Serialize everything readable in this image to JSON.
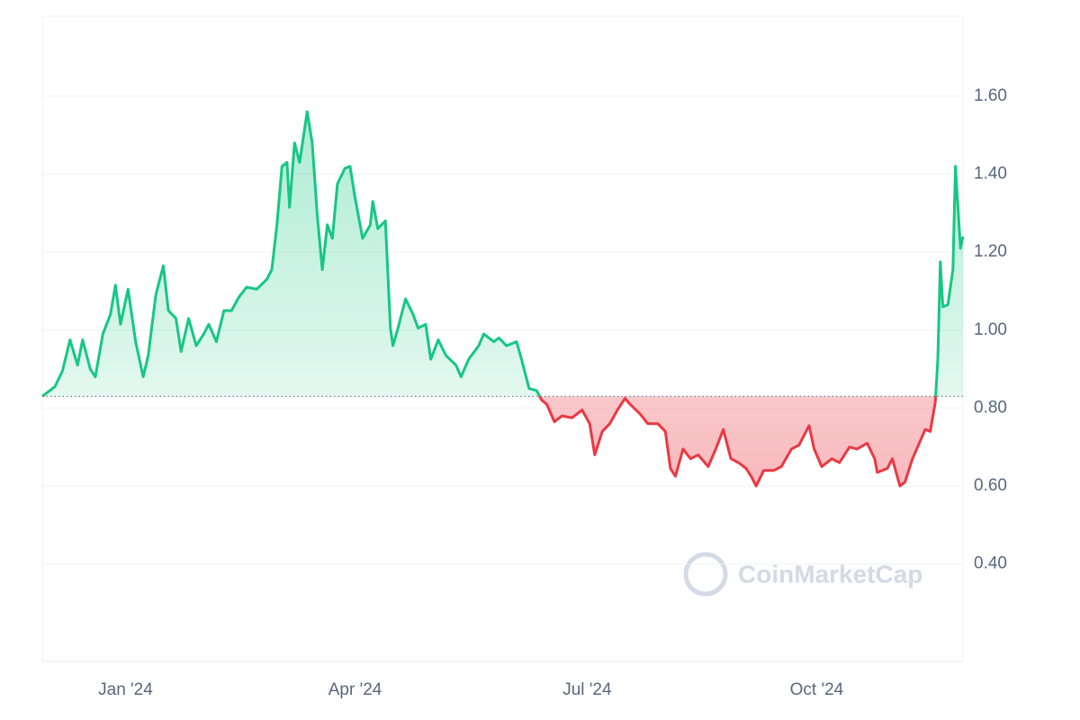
{
  "chart_data": {
    "type": "baseline-line",
    "watermark": "CoinMarketCap",
    "x": [
      0,
      5,
      8,
      11,
      14,
      16,
      19,
      21,
      24,
      27,
      29,
      31,
      34,
      37,
      40,
      42,
      45,
      48,
      50,
      53,
      55,
      58,
      61,
      64,
      66,
      69,
      72,
      75,
      78,
      81,
      85,
      89,
      91,
      93,
      95,
      97,
      98,
      100,
      102,
      105,
      107,
      109,
      111,
      113,
      115,
      117,
      120,
      122,
      124,
      127,
      130,
      131,
      133,
      136,
      138,
      139,
      141,
      144,
      147,
      149,
      152,
      154,
      157,
      160,
      164,
      166,
      169,
      173,
      175,
      179,
      181,
      184,
      188,
      190,
      193,
      196,
      198,
      200,
      203,
      206,
      210,
      214,
      217,
      219,
      222,
      225,
      228,
      231,
      233,
      237,
      240,
      244,
      247,
      249,
      251,
      254,
      257,
      260,
      264,
      267,
      270,
      273,
      276,
      279,
      281,
      283,
      286,
      290,
      293,
      297,
      300,
      304,
      306,
      309,
      313,
      316,
      320,
      323,
      327,
      330,
      331,
      335,
      337,
      340,
      342,
      345,
      348,
      350,
      352,
      354,
      355,
      356,
      357,
      359,
      361,
      362,
      364,
      365
    ],
    "values": [
      0.83,
      0.855,
      0.895,
      0.975,
      0.91,
      0.975,
      0.9,
      0.88,
      0.99,
      1.04,
      1.115,
      1.015,
      1.105,
      0.97,
      0.88,
      0.935,
      1.09,
      1.165,
      1.05,
      1.03,
      0.945,
      1.03,
      0.96,
      0.99,
      1.015,
      0.97,
      1.05,
      1.05,
      1.085,
      1.11,
      1.105,
      1.13,
      1.155,
      1.27,
      1.42,
      1.43,
      1.315,
      1.48,
      1.43,
      1.56,
      1.48,
      1.295,
      1.155,
      1.27,
      1.235,
      1.375,
      1.415,
      1.42,
      1.34,
      1.235,
      1.27,
      1.33,
      1.26,
      1.28,
      1.005,
      0.96,
      1.005,
      1.08,
      1.04,
      1.005,
      1.015,
      0.925,
      0.975,
      0.935,
      0.91,
      0.88,
      0.925,
      0.96,
      0.99,
      0.97,
      0.98,
      0.96,
      0.97,
      0.925,
      0.85,
      0.845,
      0.82,
      0.81,
      0.765,
      0.78,
      0.775,
      0.795,
      0.76,
      0.68,
      0.74,
      0.76,
      0.795,
      0.825,
      0.81,
      0.785,
      0.76,
      0.76,
      0.74,
      0.645,
      0.625,
      0.695,
      0.67,
      0.68,
      0.65,
      0.695,
      0.745,
      0.67,
      0.66,
      0.645,
      0.625,
      0.6,
      0.64,
      0.64,
      0.65,
      0.695,
      0.705,
      0.755,
      0.695,
      0.65,
      0.67,
      0.66,
      0.7,
      0.695,
      0.71,
      0.67,
      0.635,
      0.645,
      0.67,
      0.6,
      0.61,
      0.67,
      0.715,
      0.745,
      0.74,
      0.815,
      0.925,
      1.175,
      1.06,
      1.065,
      1.155,
      1.42,
      1.21,
      1.24
    ],
    "baseline": 0.83,
    "up_color": "#16c784",
    "down_color": "#ea3943",
    "xlim": [
      0,
      365
    ],
    "xticks": [
      {
        "value": 33,
        "label": "Jan '24"
      },
      {
        "value": 124,
        "label": "Apr '24"
      },
      {
        "value": 216,
        "label": "Jul '24"
      },
      {
        "value": 307,
        "label": "Oct '24"
      }
    ],
    "ylim": [
      0.15,
      1.805
    ],
    "yticks": [
      {
        "value": 0.4,
        "label": "0.40"
      },
      {
        "value": 0.6,
        "label": "0.60"
      },
      {
        "value": 0.8,
        "label": "0.80"
      },
      {
        "value": 1.0,
        "label": "1.00"
      },
      {
        "value": 1.2,
        "label": "1.20"
      },
      {
        "value": 1.4,
        "label": "1.40"
      },
      {
        "value": 1.6,
        "label": "1.60"
      }
    ],
    "grid": true
  }
}
